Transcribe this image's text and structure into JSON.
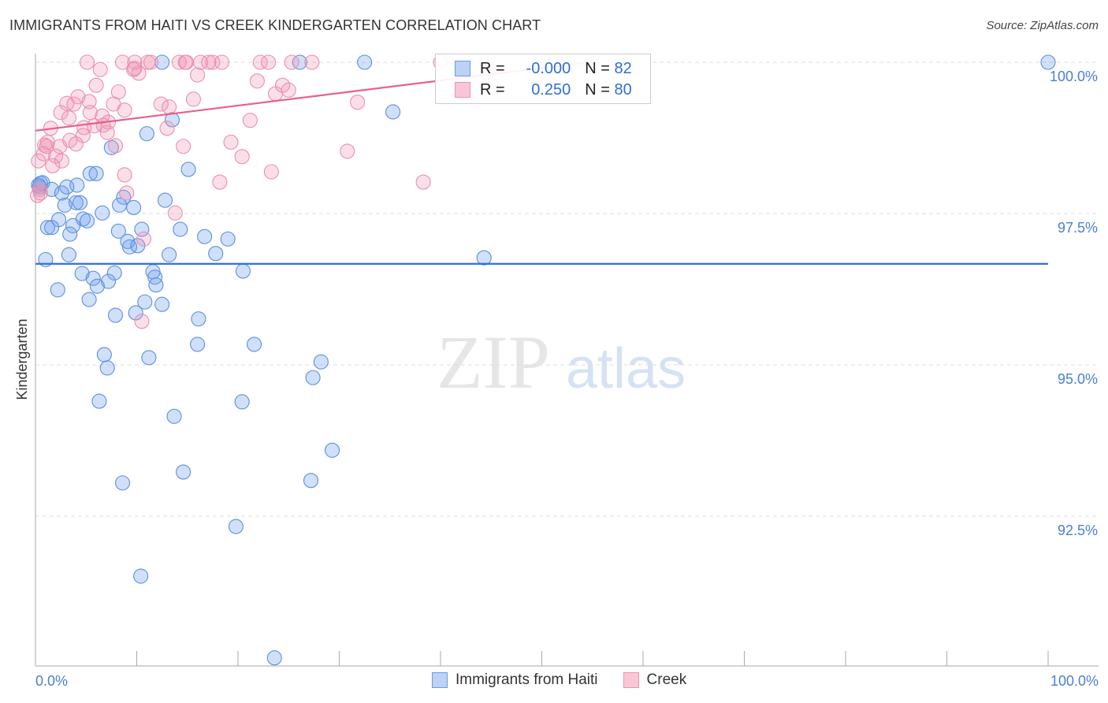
{
  "title": "IMMIGRANTS FROM HAITI VS CREEK KINDERGARTEN CORRELATION CHART",
  "source": "Source: ZipAtlas.com",
  "watermark": {
    "zip": "ZIP",
    "atlas": "atlas"
  },
  "legend": [
    {
      "r_label": "R =",
      "r_value": "-0.000",
      "n_label": "N =",
      "n_value": "82"
    },
    {
      "r_label": "R =",
      "r_value": "0.250",
      "n_label": "N =",
      "n_value": "80"
    }
  ],
  "chart_data": {
    "type": "scatter",
    "title": "IMMIGRANTS FROM HAITI VS CREEK KINDERGARTEN CORRELATION CHART",
    "xlabel": "",
    "ylabel": "Kindergarten",
    "xlim": [
      0,
      100
    ],
    "ylim": [
      90.03,
      100.14
    ],
    "x_tick_labels": [
      "0.0%",
      "100.0%"
    ],
    "y_ticks": [
      100,
      97.5,
      95,
      92.5
    ],
    "y_tick_labels": [
      "100.0%",
      "97.5%",
      "95.0%",
      "92.5%"
    ],
    "grid": true,
    "legend_position": "bottom",
    "series": [
      {
        "name": "Immigrants from Haiti",
        "color": "#5b8fdf",
        "line_color": "#2f6fd6",
        "trend": [
          [
            0,
            96.67
          ],
          [
            100,
            96.67
          ]
        ],
        "points": [
          [
            32.5,
            100
          ],
          [
            12.5,
            100
          ],
          [
            26.1,
            100
          ],
          [
            100,
            100
          ],
          [
            35.3,
            99.18
          ],
          [
            13.5,
            99.05
          ],
          [
            11.0,
            98.82
          ],
          [
            7.5,
            98.59
          ],
          [
            15.1,
            98.23
          ],
          [
            5.4,
            98.16
          ],
          [
            6.0,
            98.16
          ],
          [
            0.7,
            98.01
          ],
          [
            0.4,
            97.94
          ],
          [
            4.1,
            97.97
          ],
          [
            3.1,
            97.94
          ],
          [
            1.6,
            97.9
          ],
          [
            2.6,
            97.84
          ],
          [
            8.7,
            97.77
          ],
          [
            12.8,
            97.72
          ],
          [
            4.0,
            97.68
          ],
          [
            4.4,
            97.68
          ],
          [
            2.9,
            97.64
          ],
          [
            8.3,
            97.64
          ],
          [
            9.7,
            97.6
          ],
          [
            6.6,
            97.51
          ],
          [
            2.3,
            97.4
          ],
          [
            4.7,
            97.41
          ],
          [
            5.1,
            97.38
          ],
          [
            1.2,
            97.27
          ],
          [
            1.6,
            97.27
          ],
          [
            3.7,
            97.3
          ],
          [
            8.2,
            97.21
          ],
          [
            10.5,
            97.24
          ],
          [
            3.4,
            97.16
          ],
          [
            14.3,
            97.24
          ],
          [
            16.7,
            97.12
          ],
          [
            19.0,
            97.08
          ],
          [
            9.1,
            97.04
          ],
          [
            9.3,
            96.95
          ],
          [
            10.1,
            96.97
          ],
          [
            1.0,
            96.74
          ],
          [
            3.3,
            96.82
          ],
          [
            13.2,
            96.82
          ],
          [
            17.8,
            96.84
          ],
          [
            44.3,
            96.77
          ],
          [
            4.6,
            96.51
          ],
          [
            7.8,
            96.52
          ],
          [
            11.6,
            96.54
          ],
          [
            20.5,
            96.55
          ],
          [
            5.7,
            96.43
          ],
          [
            7.2,
            96.38
          ],
          [
            11.8,
            96.45
          ],
          [
            6.1,
            96.3
          ],
          [
            11.9,
            96.32
          ],
          [
            2.2,
            96.24
          ],
          [
            5.3,
            96.08
          ],
          [
            10.8,
            96.04
          ],
          [
            12.5,
            96.0
          ],
          [
            7.9,
            95.82
          ],
          [
            9.9,
            95.86
          ],
          [
            16.1,
            95.76
          ],
          [
            16.0,
            95.34
          ],
          [
            21.6,
            95.34
          ],
          [
            6.8,
            95.17
          ],
          [
            28.2,
            95.05
          ],
          [
            11.2,
            95.12
          ],
          [
            7.1,
            94.95
          ],
          [
            27.4,
            94.79
          ],
          [
            6.3,
            94.4
          ],
          [
            20.4,
            94.39
          ],
          [
            13.7,
            94.15
          ],
          [
            29.3,
            93.59
          ],
          [
            14.6,
            93.23
          ],
          [
            8.6,
            93.05
          ],
          [
            27.2,
            93.09
          ],
          [
            19.8,
            92.33
          ],
          [
            10.4,
            91.51
          ],
          [
            23.6,
            90.16
          ],
          [
            0.3,
            97.97
          ],
          [
            0.5,
            98.0
          ]
        ]
      },
      {
        "name": "Creek",
        "color": "#e890ae",
        "line_color": "#e8608c",
        "trend": [
          [
            0,
            98.87
          ],
          [
            54.6,
            100
          ]
        ],
        "points": [
          [
            5.1,
            100
          ],
          [
            8.6,
            100
          ],
          [
            9.8,
            100
          ],
          [
            11.1,
            100
          ],
          [
            11.4,
            100
          ],
          [
            14.2,
            100
          ],
          [
            14.9,
            100
          ],
          [
            16.3,
            100
          ],
          [
            17.5,
            100
          ],
          [
            18.4,
            100
          ],
          [
            22.2,
            100
          ],
          [
            23.0,
            100
          ],
          [
            25.3,
            100
          ],
          [
            27.3,
            100
          ],
          [
            40.0,
            100
          ],
          [
            6.4,
            99.88
          ],
          [
            10.2,
            99.82
          ],
          [
            9.7,
            99.88
          ],
          [
            16.0,
            99.79
          ],
          [
            6.0,
            99.62
          ],
          [
            8.2,
            99.51
          ],
          [
            21.9,
            99.69
          ],
          [
            24.4,
            99.62
          ],
          [
            25.0,
            99.54
          ],
          [
            23.7,
            99.48
          ],
          [
            4.2,
            99.43
          ],
          [
            5.3,
            99.35
          ],
          [
            3.1,
            99.32
          ],
          [
            3.8,
            99.31
          ],
          [
            7.7,
            99.31
          ],
          [
            12.4,
            99.31
          ],
          [
            13.2,
            99.26
          ],
          [
            15.6,
            99.39
          ],
          [
            31.8,
            99.34
          ],
          [
            2.5,
            99.17
          ],
          [
            5.4,
            99.17
          ],
          [
            6.6,
            99.11
          ],
          [
            8.8,
            99.21
          ],
          [
            3.3,
            99.08
          ],
          [
            7.2,
            99.01
          ],
          [
            21.2,
            99.04
          ],
          [
            6.7,
            98.96
          ],
          [
            4.8,
            98.92
          ],
          [
            5.8,
            98.95
          ],
          [
            1.5,
            98.91
          ],
          [
            13.0,
            98.91
          ],
          [
            4.7,
            98.79
          ],
          [
            7.1,
            98.84
          ],
          [
            1.2,
            98.68
          ],
          [
            3.4,
            98.71
          ],
          [
            0.9,
            98.63
          ],
          [
            2.4,
            98.61
          ],
          [
            4.0,
            98.65
          ],
          [
            7.9,
            98.62
          ],
          [
            14.6,
            98.61
          ],
          [
            19.3,
            98.68
          ],
          [
            30.8,
            98.53
          ],
          [
            0.8,
            98.49
          ],
          [
            2.0,
            98.45
          ],
          [
            20.4,
            98.44
          ],
          [
            0.3,
            98.37
          ],
          [
            2.6,
            98.37
          ],
          [
            1.7,
            98.29
          ],
          [
            8.8,
            98.14
          ],
          [
            23.3,
            98.19
          ],
          [
            18.2,
            98.02
          ],
          [
            38.3,
            98.02
          ],
          [
            0.5,
            97.84
          ],
          [
            0.2,
            97.8
          ],
          [
            9.0,
            97.84
          ],
          [
            13.8,
            97.51
          ],
          [
            10.7,
            97.08
          ],
          [
            10.5,
            95.72
          ],
          [
            1.1,
            98.61
          ],
          [
            0.4,
            97.9
          ],
          [
            17.1,
            100
          ],
          [
            14.8,
            100
          ],
          [
            9.8,
            99.9
          ]
        ]
      }
    ]
  }
}
